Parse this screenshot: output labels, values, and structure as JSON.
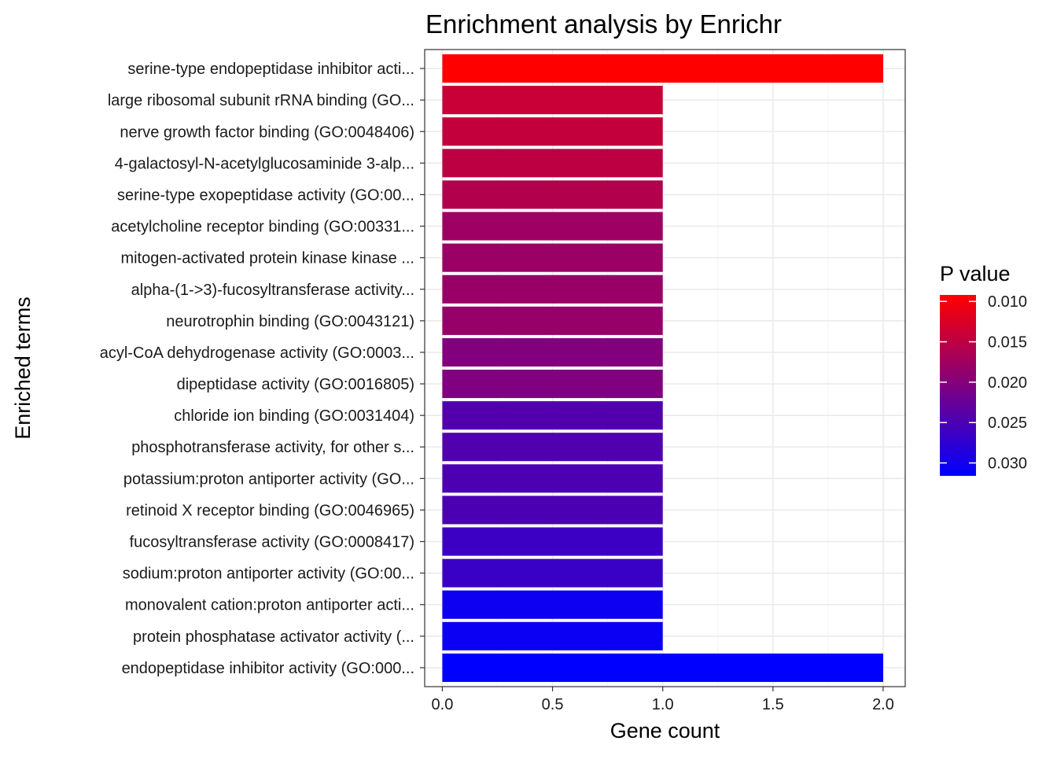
{
  "chart_data": {
    "type": "bar",
    "orientation": "horizontal",
    "title": "Enrichment analysis by Enrichr",
    "xlabel": "Gene count",
    "ylabel": "Enriched terms",
    "xlim": [
      -0.08,
      2.1
    ],
    "xticks": [
      0.0,
      0.5,
      1.0,
      1.5,
      2.0
    ],
    "xtick_labels": [
      "0.0",
      "0.5",
      "1.0",
      "1.5",
      "2.0"
    ],
    "grid": true,
    "legend": {
      "title": "P value",
      "position": "right",
      "ticks": [
        0.01,
        0.015,
        0.02,
        0.025,
        0.03
      ],
      "tick_labels": [
        "0.010",
        "0.015",
        "0.020",
        "0.025",
        "0.030"
      ],
      "range": [
        0.0092,
        0.0316
      ],
      "low_color": "#ff0000",
      "high_color": "#0000ff"
    },
    "categories": [
      "serine-type endopeptidase inhibitor acti...",
      "large ribosomal subunit rRNA binding (GO...",
      "nerve growth factor binding (GO:0048406)",
      "4-galactosyl-N-acetylglucosaminide 3-alp...",
      "serine-type exopeptidase activity (GO:00...",
      "acetylcholine receptor binding (GO:00331...",
      "mitogen-activated protein kinase kinase ...",
      "alpha-(1->3)-fucosyltransferase activity...",
      "neurotrophin binding (GO:0043121)",
      "acyl-CoA dehydrogenase activity (GO:0003...",
      "dipeptidase activity (GO:0016805)",
      "chloride ion binding (GO:0031404)",
      "phosphotransferase activity, for other s...",
      "potassium:proton antiporter activity (GO...",
      "retinoid X receptor binding (GO:0046965)",
      "fucosyltransferase activity (GO:0008417)",
      "sodium:proton antiporter activity (GO:00...",
      "monovalent cation:proton antiporter acti...",
      "protein phosphatase activator activity (...",
      "endopeptidase inhibitor activity (GO:000..."
    ],
    "values": [
      2,
      1,
      1,
      1,
      1,
      1,
      1,
      1,
      1,
      1,
      1,
      1,
      1,
      1,
      1,
      1,
      1,
      1,
      1,
      2
    ],
    "pvalues": [
      0.0092,
      0.014,
      0.0145,
      0.015,
      0.016,
      0.0178,
      0.018,
      0.0182,
      0.0184,
      0.0202,
      0.0204,
      0.0244,
      0.0246,
      0.0248,
      0.025,
      0.0264,
      0.0266,
      0.0305,
      0.0306,
      0.0316
    ]
  }
}
